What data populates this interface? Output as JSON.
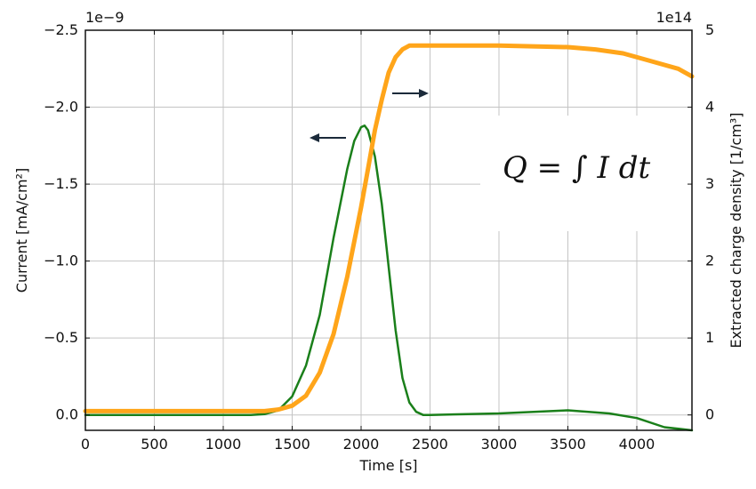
{
  "chart_data": {
    "type": "line",
    "xlabel": "Time [s]",
    "ylabel_left": "Current [mA/cm²]",
    "ylabel_right": "Extracted charge density [1/cm³]",
    "left_offset_label": "1e−9",
    "right_offset_label": "1e14",
    "formula": "Q = ∫ I dt",
    "grid": true,
    "xlim": [
      0,
      4400
    ],
    "ylim_left": [
      0.1,
      -2.5
    ],
    "ylim_right": [
      -0.2,
      5
    ],
    "left_axis_inverted": true,
    "x_ticks": [
      0,
      500,
      1000,
      1500,
      2000,
      2500,
      3000,
      3500,
      4000
    ],
    "x_tick_labels": [
      "0",
      "500",
      "1000",
      "1500",
      "2000",
      "2500",
      "3000",
      "3500",
      "4000"
    ],
    "left_ticks": [
      -2.5,
      -2.0,
      -1.5,
      -1.0,
      -0.5,
      0.0
    ],
    "left_tick_labels": [
      "−2.5",
      "−2.0",
      "−1.5",
      "−1.0",
      "−0.5",
      "0.0"
    ],
    "right_ticks": [
      0,
      1,
      2,
      3,
      4,
      5
    ],
    "right_tick_labels": [
      "0",
      "1",
      "2",
      "3",
      "4",
      "5"
    ],
    "series": [
      {
        "axis": "left",
        "color": "#1a7f1a",
        "x": [
          0,
          1200,
          1300,
          1400,
          1500,
          1600,
          1700,
          1800,
          1900,
          1950,
          2000,
          2025,
          2050,
          2100,
          2150,
          2200,
          2250,
          2300,
          2350,
          2400,
          2450,
          2500,
          3000,
          3500,
          3800,
          4000,
          4200,
          4400
        ],
        "y": [
          0.0,
          0.0,
          -0.005,
          -0.03,
          -0.12,
          -0.32,
          -0.65,
          -1.15,
          -1.6,
          -1.78,
          -1.87,
          -1.88,
          -1.85,
          -1.68,
          -1.37,
          -0.96,
          -0.55,
          -0.24,
          -0.08,
          -0.02,
          0.0,
          0.0,
          -0.01,
          -0.03,
          -0.01,
          0.02,
          0.08,
          0.14
        ]
      },
      {
        "axis": "right",
        "color": "#ffa51a",
        "x": [
          0,
          1300,
          1400,
          1500,
          1600,
          1700,
          1800,
          1900,
          2000,
          2050,
          2100,
          2150,
          2200,
          2250,
          2300,
          2350,
          2400,
          2500,
          3000,
          3500,
          3700,
          3900,
          4100,
          4300,
          4400
        ],
        "y": [
          0.05,
          0.05,
          0.07,
          0.12,
          0.25,
          0.55,
          1.05,
          1.8,
          2.7,
          3.2,
          3.7,
          4.1,
          4.45,
          4.65,
          4.75,
          4.8,
          4.8,
          4.8,
          4.8,
          4.78,
          4.75,
          4.7,
          4.6,
          4.5,
          4.4
        ]
      }
    ],
    "annotations": [
      {
        "type": "arrow",
        "direction": "left",
        "points_to": "left axis",
        "near_x": 1800,
        "near_left_y": -1.8
      },
      {
        "type": "arrow",
        "direction": "right",
        "points_to": "right axis",
        "near_x": 2200,
        "near_right_y": 4.5
      }
    ]
  }
}
